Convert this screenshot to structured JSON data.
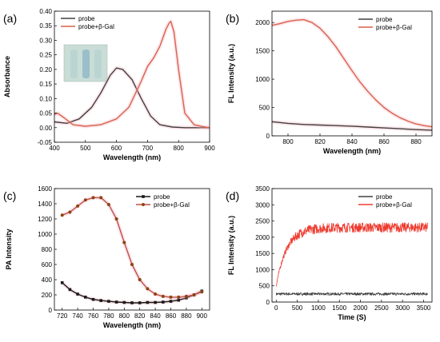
{
  "colors": {
    "probe": "#404040",
    "probe_gal": "#d9614c",
    "probe_gal_bright": "#ee3b2f",
    "glow": "#f5b8c4"
  },
  "chart_data": [
    {
      "panel_label": "(a)",
      "type": "line",
      "xlabel": "Wavelength (nm)",
      "ylabel": "Absorbance",
      "xlim": [
        400,
        900
      ],
      "ylim": [
        -0.05,
        0.4
      ],
      "xticks": [
        400,
        500,
        600,
        700,
        800,
        900
      ],
      "yticks": [
        -0.05,
        0.0,
        0.05,
        0.1,
        0.15,
        0.2,
        0.25,
        0.3,
        0.35,
        0.4
      ],
      "tick_format": 2,
      "legend": "top-left",
      "inset": "photo-of-vials",
      "series": [
        {
          "name": "probe",
          "color": "#404040",
          "x": [
            400,
            440,
            480,
            520,
            550,
            580,
            600,
            620,
            650,
            680,
            710,
            740,
            780,
            820,
            860,
            900
          ],
          "y": [
            0.02,
            0.015,
            0.03,
            0.07,
            0.12,
            0.18,
            0.205,
            0.2,
            0.165,
            0.1,
            0.04,
            0.01,
            0.002,
            0.0,
            0.0,
            0.0
          ]
        },
        {
          "name": "probe+β-Gal",
          "color": "#d9614c",
          "x": [
            400,
            410,
            430,
            460,
            500,
            550,
            600,
            640,
            680,
            700,
            720,
            740,
            760,
            770,
            775,
            785,
            800,
            820,
            850,
            880,
            900
          ],
          "y": [
            0.045,
            0.05,
            0.035,
            0.01,
            0.005,
            0.01,
            0.03,
            0.07,
            0.16,
            0.21,
            0.24,
            0.28,
            0.34,
            0.36,
            0.365,
            0.33,
            0.2,
            0.05,
            0.01,
            0.003,
            0.0
          ]
        }
      ]
    },
    {
      "panel_label": "(b)",
      "type": "line",
      "xlabel": "Wavelength (nm)",
      "ylabel": "FL Intensity (a.u.)",
      "xlim": [
        790,
        890
      ],
      "ylim": [
        0,
        2200
      ],
      "xticks": [
        800,
        820,
        840,
        860,
        880
      ],
      "yticks": [
        0,
        500,
        1000,
        1500,
        2000
      ],
      "tick_format": 0,
      "legend": "top-right",
      "series": [
        {
          "name": "probe",
          "color": "#404040",
          "x": [
            790,
            800,
            810,
            820,
            830,
            840,
            850,
            860,
            870,
            880,
            890
          ],
          "y": [
            250,
            220,
            200,
            190,
            180,
            170,
            155,
            140,
            125,
            110,
            100
          ]
        },
        {
          "name": "probe+β-Gal",
          "color": "#d9614c",
          "x": [
            790,
            795,
            800,
            805,
            810,
            815,
            820,
            825,
            830,
            835,
            840,
            845,
            850,
            855,
            860,
            865,
            870,
            875,
            880,
            885,
            890
          ],
          "y": [
            1950,
            1980,
            2020,
            2040,
            2050,
            2000,
            1900,
            1750,
            1570,
            1360,
            1150,
            950,
            780,
            630,
            500,
            400,
            320,
            260,
            210,
            180,
            160
          ]
        }
      ]
    },
    {
      "panel_label": "(c)",
      "type": "line",
      "xlabel": "Wavelength (nm)",
      "ylabel": "PA Intensity",
      "xlim": [
        710,
        910
      ],
      "ylim": [
        0,
        1600
      ],
      "xticks": [
        720,
        740,
        760,
        780,
        800,
        820,
        840,
        860,
        880,
        900
      ],
      "yticks": [
        0,
        200,
        400,
        600,
        800,
        1000,
        1200,
        1400,
        1600
      ],
      "tick_format": 0,
      "legend": "top-right",
      "markers": true,
      "series": [
        {
          "name": "probe",
          "color": "#1a1a1a",
          "marker": "square",
          "x": [
            720,
            730,
            740,
            750,
            760,
            770,
            780,
            790,
            800,
            810,
            820,
            830,
            840,
            850,
            860,
            870,
            880,
            890,
            900
          ],
          "y": [
            360,
            270,
            210,
            170,
            140,
            125,
            115,
            105,
            100,
            95,
            95,
            100,
            100,
            105,
            115,
            130,
            160,
            200,
            250
          ]
        },
        {
          "name": "probe+β-Gal",
          "color": "#8b4513",
          "line_color": "#c0504d",
          "marker": "circle",
          "x": [
            720,
            730,
            740,
            750,
            760,
            770,
            780,
            790,
            800,
            810,
            820,
            830,
            840,
            850,
            860,
            870,
            880,
            890,
            900
          ],
          "y": [
            1250,
            1290,
            1370,
            1450,
            1480,
            1480,
            1390,
            1200,
            890,
            600,
            400,
            280,
            210,
            180,
            170,
            170,
            180,
            200,
            240
          ]
        }
      ]
    },
    {
      "panel_label": "(d)",
      "type": "line",
      "xlabel": "Time (S)",
      "ylabel": "FL Intensity (a.u.)",
      "xlim": [
        -100,
        3700
      ],
      "ylim": [
        0,
        3500
      ],
      "xticks": [
        0,
        500,
        1000,
        1500,
        2000,
        2500,
        3000,
        3500
      ],
      "yticks": [
        0,
        500,
        1000,
        1500,
        2000,
        2500,
        3000,
        3500
      ],
      "tick_format": 0,
      "legend": "top-right",
      "noisy": true,
      "series": [
        {
          "name": "probe",
          "color": "#404040",
          "level": 250,
          "noise": 40,
          "t_end": 3600
        },
        {
          "name": "probe+β-Gal",
          "color": "#ee3b2f",
          "start": 500,
          "level": 2300,
          "tau": 250,
          "noise": 150,
          "t_end": 3600
        }
      ]
    }
  ]
}
